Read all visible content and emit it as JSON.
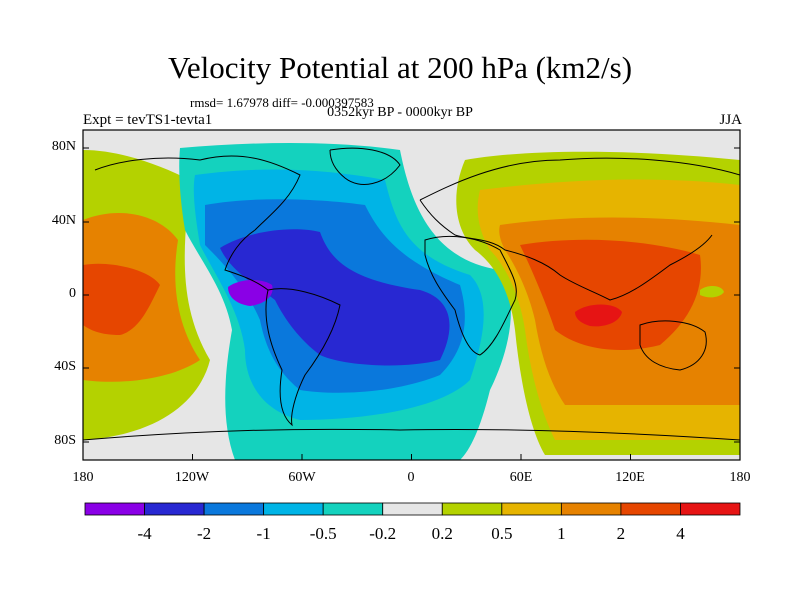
{
  "title": "Velocity Potential at 200 hPa (km2/s)",
  "stats": "rmsd= 1.67978 diff= -0.000397583",
  "period": "0352kyr BP - 0000kyr BP",
  "experiment": "Expt = tevTS1-tevta1",
  "season": "JJA",
  "lat_labels": [
    "80N",
    "40N",
    "0",
    "40S",
    "80S"
  ],
  "lon_labels": [
    "180",
    "120W",
    "60W",
    "0",
    "60E",
    "120E",
    "180"
  ],
  "colorbar": {
    "labels": [
      "-4",
      "-2",
      "-1",
      "-0.5",
      "-0.2",
      "0.2",
      "0.5",
      "1",
      "2",
      "4"
    ],
    "colors": [
      "#8a00e6",
      "#2828d2",
      "#0a78dc",
      "#00b4e6",
      "#14d2be",
      "#e6e6e6",
      "#b4d200",
      "#e6b400",
      "#e68200",
      "#e64600",
      "#e61414"
    ]
  }
}
